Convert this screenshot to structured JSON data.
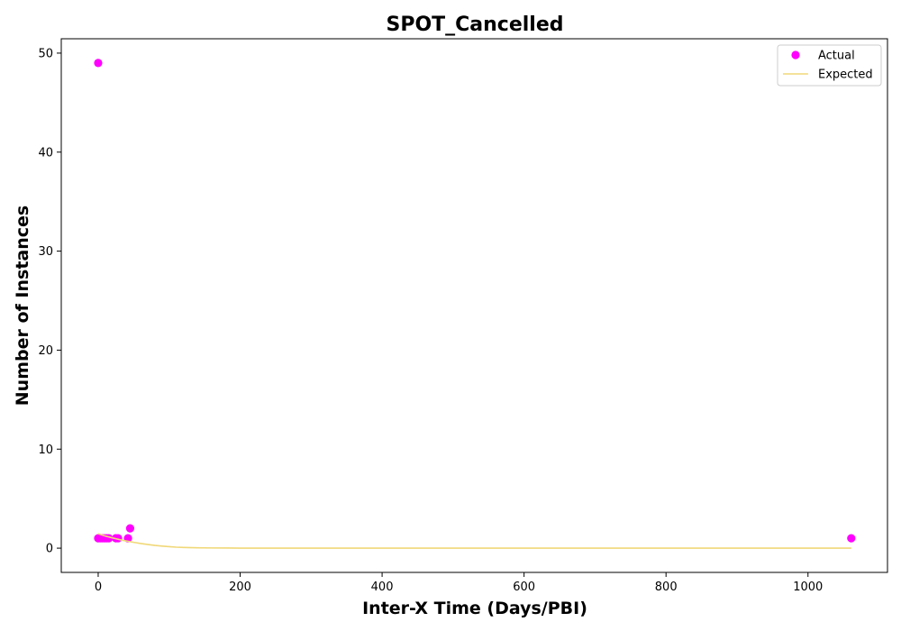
{
  "chart_data": {
    "type": "scatter",
    "title": "SPOT_Cancelled",
    "xlabel": "Inter-X Time (Days/PBI)",
    "ylabel": "Number of Instances",
    "xlim": [
      -52,
      1112
    ],
    "ylim": [
      -2.45,
      51.45
    ],
    "xticks": [
      0,
      200,
      400,
      600,
      800,
      1000
    ],
    "yticks": [
      0,
      10,
      20,
      30,
      40,
      50
    ],
    "grid": false,
    "legend_position": "top-right",
    "series": [
      {
        "name": "Actual",
        "kind": "scatter",
        "color": "#ff00ff",
        "points": [
          [
            0,
            49
          ],
          [
            0,
            1
          ],
          [
            3,
            1
          ],
          [
            6,
            1
          ],
          [
            9,
            1
          ],
          [
            12,
            1
          ],
          [
            15,
            1
          ],
          [
            25,
            1
          ],
          [
            28,
            1
          ],
          [
            42,
            1
          ],
          [
            45,
            2
          ],
          [
            1061,
            1
          ]
        ]
      },
      {
        "name": "Expected",
        "kind": "line",
        "color": "#f0d878",
        "points": [
          [
            0,
            1.45
          ],
          [
            10,
            1.23
          ],
          [
            20,
            1.04
          ],
          [
            30,
            0.87
          ],
          [
            40,
            0.72
          ],
          [
            50,
            0.59
          ],
          [
            60,
            0.47
          ],
          [
            70,
            0.37
          ],
          [
            80,
            0.28
          ],
          [
            90,
            0.21
          ],
          [
            100,
            0.15
          ],
          [
            110,
            0.1
          ],
          [
            120,
            0.07
          ],
          [
            140,
            0.04
          ],
          [
            160,
            0.02
          ],
          [
            200,
            0.005
          ],
          [
            300,
            0.0
          ],
          [
            500,
            0.0
          ],
          [
            800,
            0.0
          ],
          [
            1061,
            0.0
          ]
        ]
      }
    ]
  }
}
